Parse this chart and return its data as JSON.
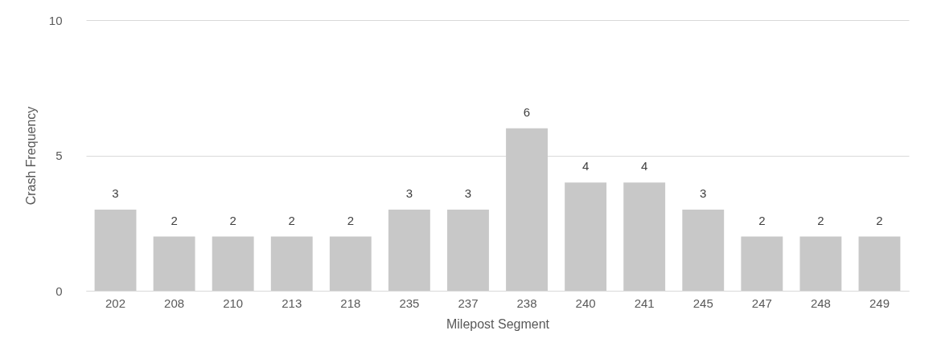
{
  "chart_data": {
    "type": "bar",
    "xlabel": "Milepost Segment",
    "ylabel": "Crash Frequency",
    "categories": [
      "202",
      "208",
      "210",
      "213",
      "218",
      "235",
      "237",
      "238",
      "240",
      "241",
      "245",
      "247",
      "248",
      "249"
    ],
    "values": [
      3,
      2,
      2,
      2,
      2,
      3,
      3,
      6,
      4,
      4,
      3,
      2,
      2,
      2
    ],
    "color": "#c8c8c8",
    "ylim": [
      0,
      10
    ],
    "yticks": [
      0,
      5,
      10
    ],
    "grid": "y",
    "data_labels": true
  }
}
